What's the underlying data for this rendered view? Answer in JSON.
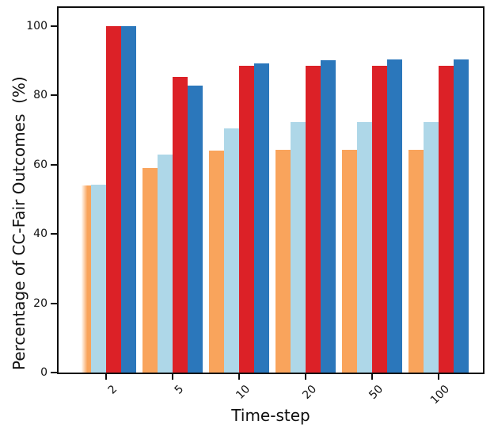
{
  "figure": {
    "background": "#ffffff",
    "spine_color": "#0d0d0d",
    "text_color": "#111111"
  },
  "chart_data": {
    "type": "bar",
    "title": "",
    "xlabel": "Time-step",
    "ylabel": "Percentage of CC-Fair Outcomes  (%)",
    "categories": [
      "2",
      "5",
      "10",
      "20",
      "50",
      "100"
    ],
    "series": [
      {
        "name": "orange",
        "color": "#F9A45C",
        "values": [
          54.0,
          59.0,
          64.0,
          64.3,
          64.3,
          64.3
        ]
      },
      {
        "name": "light-blue",
        "color": "#AED7E8",
        "values": [
          54.3,
          62.8,
          70.5,
          72.2,
          72.3,
          72.3
        ]
      },
      {
        "name": "red",
        "color": "#DC2127",
        "values": [
          100.0,
          85.4,
          88.4,
          88.5,
          88.6,
          88.5
        ]
      },
      {
        "name": "dark-blue",
        "color": "#2B77BB",
        "values": [
          100.0,
          82.9,
          89.2,
          90.2,
          90.4,
          90.4
        ]
      }
    ],
    "yticks": [
      0,
      20,
      40,
      60,
      80,
      100
    ],
    "ylim": [
      0,
      105.2
    ],
    "xticks_rotation_deg": 45,
    "grid": false,
    "legend": "none"
  }
}
